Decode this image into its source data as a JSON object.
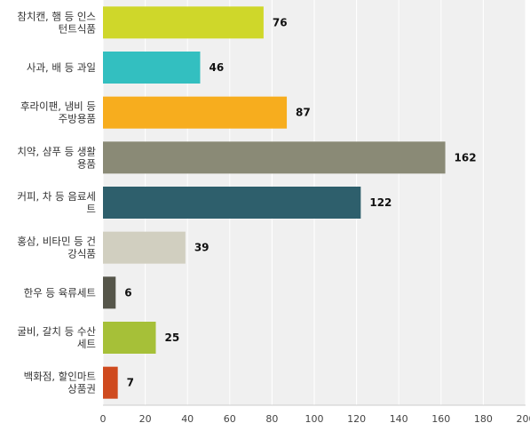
{
  "chart_data": {
    "type": "bar",
    "orientation": "horizontal",
    "categories": [
      [
        "참치캔, 햄 등 인스",
        "턴트식품"
      ],
      [
        "사과, 배 등 과일"
      ],
      [
        "후라이팬, 냄비 등",
        "주방용품"
      ],
      [
        "치약, 샴푸 등 생활",
        "용품"
      ],
      [
        "커피, 차 등 음료세",
        "트"
      ],
      [
        "홍삼, 비타민 등 건",
        "강식품"
      ],
      [
        "한우 등 육류세트"
      ],
      [
        "굴비, 갈치 등 수산",
        "세트"
      ],
      [
        "백화점, 할인마트",
        "상품권"
      ]
    ],
    "values": [
      76,
      46,
      87,
      162,
      122,
      39,
      6,
      25,
      7
    ],
    "value_labels": [
      "76",
      "46",
      "87",
      "162",
      "122",
      "39",
      "6",
      "25",
      "7"
    ],
    "colors": [
      "#cfd72a",
      "#33bfc0",
      "#f7ad1e",
      "#8a8a76",
      "#2e5f6c",
      "#d1cfc0",
      "#56564a",
      "#a6c038",
      "#cf4a1e"
    ],
    "xlim": [
      0,
      200
    ],
    "xticks": [
      0,
      20,
      40,
      60,
      80,
      100,
      120,
      140,
      160,
      180,
      200
    ],
    "xtick_labels": [
      "0",
      "20",
      "40",
      "60",
      "80",
      "100",
      "120",
      "140",
      "160",
      "180",
      "200"
    ],
    "grid": true,
    "background_color": "#f0f0f0",
    "grid_color": "#ffffff"
  }
}
